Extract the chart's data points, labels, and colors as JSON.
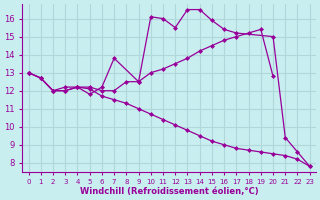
{
  "background_color": "#c8eef0",
  "grid_color": "#b0d8da",
  "line_color": "#990099",
  "xlabel": "Windchill (Refroidissement éolien,°C)",
  "xlabel_color": "#990099",
  "tick_color": "#990099",
  "xlim": [
    -0.5,
    23.5
  ],
  "ylim": [
    7.5,
    16.8
  ],
  "yticks": [
    8,
    9,
    10,
    11,
    12,
    13,
    14,
    15,
    16
  ],
  "xticks": [
    0,
    1,
    2,
    3,
    4,
    5,
    6,
    7,
    8,
    9,
    10,
    11,
    12,
    13,
    14,
    15,
    16,
    17,
    18,
    19,
    20,
    21,
    22,
    23
  ],
  "line1_x": [
    0,
    1,
    2,
    3,
    4,
    5,
    6,
    7,
    9,
    10,
    11,
    12,
    13,
    14,
    15,
    16,
    17,
    20,
    21,
    22,
    23
  ],
  "line1_y": [
    13.0,
    12.7,
    12.0,
    12.2,
    12.2,
    11.8,
    12.2,
    13.8,
    12.5,
    16.1,
    16.0,
    15.5,
    16.5,
    16.5,
    15.9,
    15.4,
    15.2,
    15.0,
    9.4,
    8.6,
    7.8
  ],
  "line2_x": [
    0,
    1,
    2,
    3,
    4,
    5,
    6,
    7,
    8,
    9,
    10,
    11,
    12,
    13,
    14,
    15,
    16,
    17,
    18,
    19,
    20
  ],
  "line2_y": [
    13.0,
    12.7,
    12.0,
    12.0,
    12.2,
    12.2,
    12.0,
    12.0,
    12.5,
    12.5,
    13.0,
    13.2,
    13.5,
    13.8,
    14.2,
    14.5,
    14.8,
    15.0,
    15.2,
    15.4,
    12.8
  ],
  "line3_x": [
    0,
    1,
    2,
    3,
    4,
    5,
    6,
    7,
    8,
    9,
    10,
    11,
    12,
    13,
    14,
    15,
    16,
    17,
    18,
    19,
    20,
    21,
    22,
    23
  ],
  "line3_y": [
    13.0,
    12.7,
    12.0,
    12.0,
    12.2,
    12.1,
    11.7,
    11.5,
    11.3,
    11.0,
    10.7,
    10.4,
    10.1,
    9.8,
    9.5,
    9.2,
    9.0,
    8.8,
    8.7,
    8.6,
    8.5,
    8.4,
    8.2,
    7.8
  ]
}
